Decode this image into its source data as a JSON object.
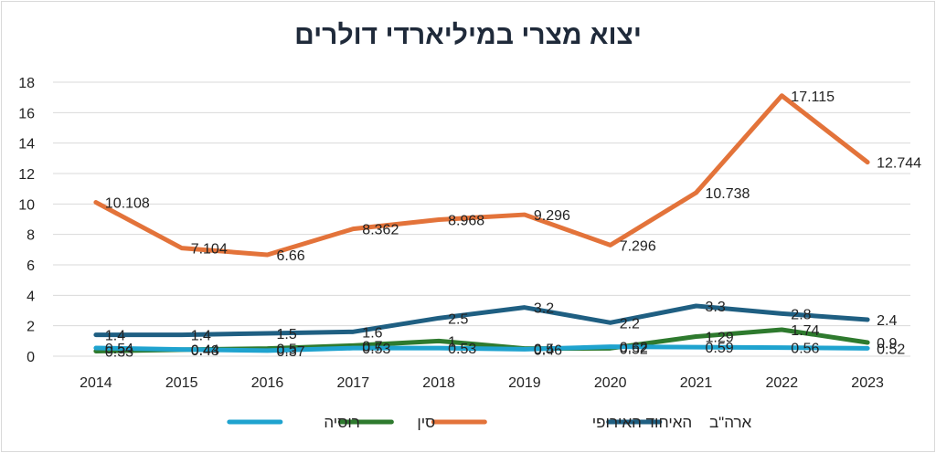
{
  "chart_data": {
    "type": "line",
    "title": "יצוא מצרי במיליארדי דולרים",
    "xlabel": "",
    "ylabel": "",
    "x": [
      "2014",
      "2015",
      "2016",
      "2017",
      "2018",
      "2019",
      "2020",
      "2021",
      "2022",
      "2023"
    ],
    "ylim": [
      0,
      18
    ],
    "yticks": [
      "0",
      "2",
      "4",
      "6",
      "8",
      "10",
      "12",
      "14",
      "16",
      "18"
    ],
    "grid": true,
    "legend_position": "bottom",
    "series": [
      {
        "name": "ארה\"ב",
        "color": "#1f5f82",
        "values": [
          1.4,
          1.4,
          1.5,
          1.6,
          2.5,
          3.2,
          2.2,
          3.3,
          2.8,
          2.4
        ],
        "labels": [
          "1.4",
          "1.4",
          "1.5",
          "1.6",
          "2.5",
          "3.2",
          "2.2",
          "3.3",
          "2.8",
          "2.4"
        ]
      },
      {
        "name": "האיחוד האירופי",
        "color": "#e3733a",
        "values": [
          10.108,
          7.104,
          6.66,
          8.362,
          8.968,
          9.296,
          7.296,
          10.738,
          17.115,
          12.744
        ],
        "labels": [
          "10.108",
          "7.104",
          "6.66",
          "8.362",
          "8.968",
          "9.296",
          "7.296",
          "10.738",
          "17.115",
          "12.744"
        ]
      },
      {
        "name": "סין",
        "color": "#2e7a2e",
        "values": [
          0.33,
          0.43,
          0.5,
          0.7,
          1.0,
          0.5,
          0.52,
          1.29,
          1.74,
          0.9
        ],
        "labels": [
          "0.33",
          "0.43",
          "0.5",
          "0.7",
          "1",
          "0.5",
          "0.52",
          "1.29",
          "1.74",
          "0.9"
        ]
      },
      {
        "name": "רוסיה",
        "color": "#1fa3cf",
        "values": [
          0.54,
          0.44,
          0.37,
          0.53,
          0.53,
          0.46,
          0.62,
          0.59,
          0.56,
          0.52
        ],
        "labels": [
          "0.54",
          "0.44",
          "0.37",
          "0.53",
          "0.53",
          "0.46",
          "0.62",
          "0.59",
          "0.56",
          "0.52"
        ]
      }
    ]
  }
}
